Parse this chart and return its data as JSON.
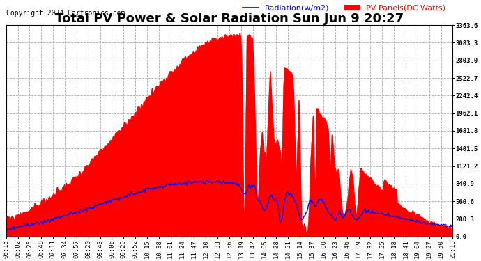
{
  "title": "Total PV Power & Solar Radiation Sun Jun 9 20:27",
  "copyright": "Copyright 2024 Cartronics.com",
  "legend_radiation": "Radiation(w/m2)",
  "legend_pv": "PV Panels(DC Watts)",
  "ylabel_right_values": [
    0.0,
    280.3,
    560.6,
    840.9,
    1121.2,
    1401.5,
    1681.8,
    1962.1,
    2242.4,
    2522.7,
    2803.0,
    3083.3,
    3363.6
  ],
  "ymax": 3363.6,
  "ymin": 0.0,
  "background_color": "#ffffff",
  "plot_bg_color": "#ffffff",
  "grid_color": "#aaaaaa",
  "grid_style": "--",
  "pv_fill_color": "#ff0000",
  "pv_line_color": "#ff0000",
  "radiation_color": "#0000ff",
  "title_color": "#000000",
  "title_fontsize": 13,
  "copyright_fontsize": 7,
  "tick_fontsize": 6.5,
  "legend_fontsize": 8,
  "x_labels": [
    "05:15",
    "06:02",
    "06:25",
    "06:48",
    "07:11",
    "07:34",
    "07:57",
    "08:20",
    "08:43",
    "09:06",
    "09:29",
    "09:52",
    "10:15",
    "10:38",
    "11:01",
    "11:24",
    "11:47",
    "12:10",
    "12:33",
    "12:56",
    "13:19",
    "13:42",
    "14:05",
    "14:28",
    "14:51",
    "15:14",
    "15:37",
    "16:00",
    "16:23",
    "16:46",
    "17:09",
    "17:32",
    "17:55",
    "18:18",
    "18:41",
    "19:04",
    "19:27",
    "19:50",
    "20:13"
  ]
}
